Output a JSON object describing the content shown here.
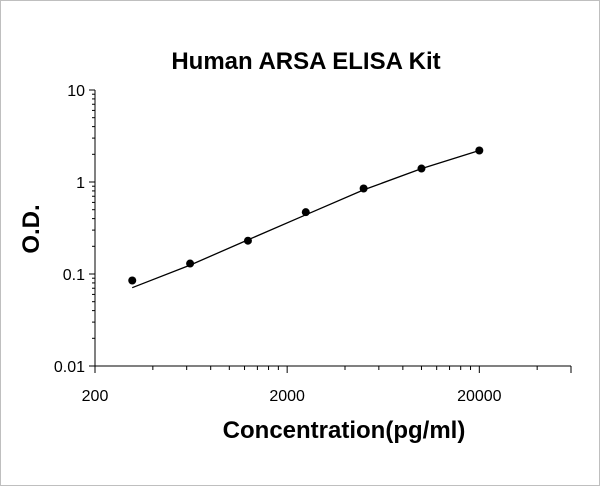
{
  "chart_data": {
    "type": "scatter",
    "title": "Human ARSA ELISA Kit",
    "xlabel": "Concentration(pg/ml)",
    "ylabel": "O.D.",
    "x_scale": "log",
    "y_scale": "log",
    "xlim": [
      200,
      60000
    ],
    "ylim": [
      0.01,
      10
    ],
    "x_ticks": [
      {
        "value": 200,
        "label": "200"
      },
      {
        "value": 2000,
        "label": "2000"
      },
      {
        "value": 20000,
        "label": "20000"
      }
    ],
    "y_ticks": [
      {
        "value": 0.01,
        "label": "0.01"
      },
      {
        "value": 0.1,
        "label": "0.1"
      },
      {
        "value": 1,
        "label": "1"
      },
      {
        "value": 10,
        "label": "10"
      }
    ],
    "grid": false,
    "legend": "none",
    "series": [
      {
        "points": [
          {
            "x": 312.5,
            "y": 0.085
          },
          {
            "x": 625,
            "y": 0.13
          },
          {
            "x": 1250,
            "y": 0.23
          },
          {
            "x": 2500,
            "y": 0.47
          },
          {
            "x": 5000,
            "y": 0.85
          },
          {
            "x": 10000,
            "y": 1.4
          },
          {
            "x": 20000,
            "y": 2.2
          }
        ],
        "fit_line": [
          {
            "x": 312.5,
            "y": 0.071
          },
          {
            "x": 625,
            "y": 0.125
          },
          {
            "x": 1250,
            "y": 0.235
          },
          {
            "x": 2500,
            "y": 0.44
          },
          {
            "x": 5000,
            "y": 0.82
          },
          {
            "x": 10000,
            "y": 1.4
          },
          {
            "x": 20000,
            "y": 2.2
          }
        ]
      }
    ],
    "colors": {
      "marker": "#000000",
      "line": "#000000",
      "axis": "#000000"
    }
  }
}
